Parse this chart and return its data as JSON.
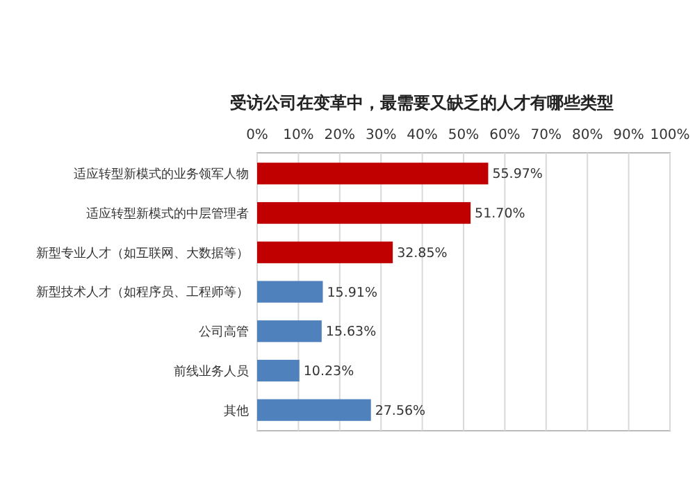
{
  "chart_data": {
    "type": "bar",
    "orientation": "horizontal",
    "title": "受访公司在变革中，最需要又缺乏的人才有哪些类型",
    "categories": [
      "适应转型新模式的业务领军人物",
      "适应转型新模式的中层管理者",
      "新型专业人才（如互联网、大数据等）",
      "新型技术人才（如程序员、工程师等）",
      "公司高管",
      "前线业务人员",
      "其他"
    ],
    "values": [
      55.97,
      51.7,
      32.85,
      15.91,
      15.63,
      10.23,
      27.56
    ],
    "colors": [
      "#c00000",
      "#c00000",
      "#c00000",
      "#4f81bd",
      "#4f81bd",
      "#4f81bd",
      "#4f81bd"
    ],
    "value_labels": [
      "55.97%",
      "51.70%",
      "32.85%",
      "15.91%",
      "15.63%",
      "10.23%",
      "27.56%"
    ],
    "xlim": [
      0,
      100
    ],
    "xticks": [
      {
        "value": 0,
        "label": "0%"
      },
      {
        "value": 10,
        "label": "10%"
      },
      {
        "value": 20,
        "label": "20%"
      },
      {
        "value": 30,
        "label": "30%"
      },
      {
        "value": 40,
        "label": "40%"
      },
      {
        "value": 50,
        "label": "50%"
      },
      {
        "value": 60,
        "label": "60%"
      },
      {
        "value": 70,
        "label": "70%"
      },
      {
        "value": 80,
        "label": "80%"
      },
      {
        "value": 90,
        "label": "90%"
      },
      {
        "value": 100,
        "label": "100%"
      }
    ],
    "grid": "x"
  }
}
